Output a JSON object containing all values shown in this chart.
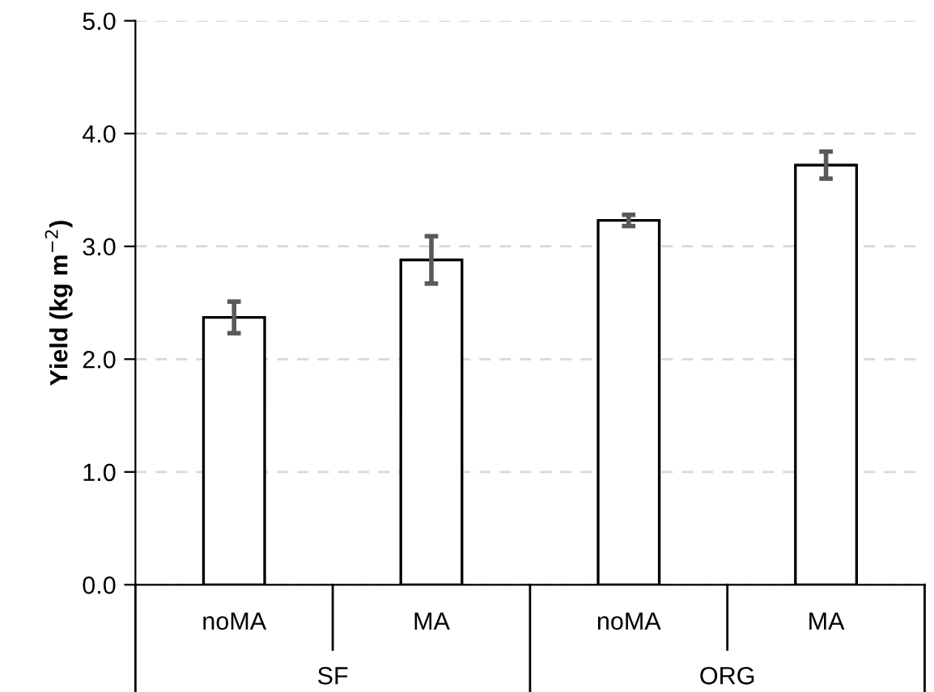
{
  "chart_data": {
    "type": "bar",
    "ylabel": "Yield (kg m$^{−2}$)",
    "categories": [
      "noMA",
      "MA",
      "noMA",
      "MA"
    ],
    "values": [
      2.37,
      2.88,
      3.23,
      3.72
    ],
    "errors": [
      0.14,
      0.21,
      0.05,
      0.12
    ],
    "color": "#ffffff",
    "ylim": [
      0,
      5.0
    ],
    "yticks": [
      {
        "value": 0,
        "label": "0.0"
      },
      {
        "value": 1,
        "label": "1.0"
      },
      {
        "value": 2,
        "label": "2.0"
      },
      {
        "value": 3,
        "label": "3.0"
      },
      {
        "value": 4,
        "label": "4.0"
      },
      {
        "value": 5,
        "label": "5.0"
      }
    ],
    "grid": "y",
    "annotations": [
      "SF",
      "ORG"
    ]
  }
}
